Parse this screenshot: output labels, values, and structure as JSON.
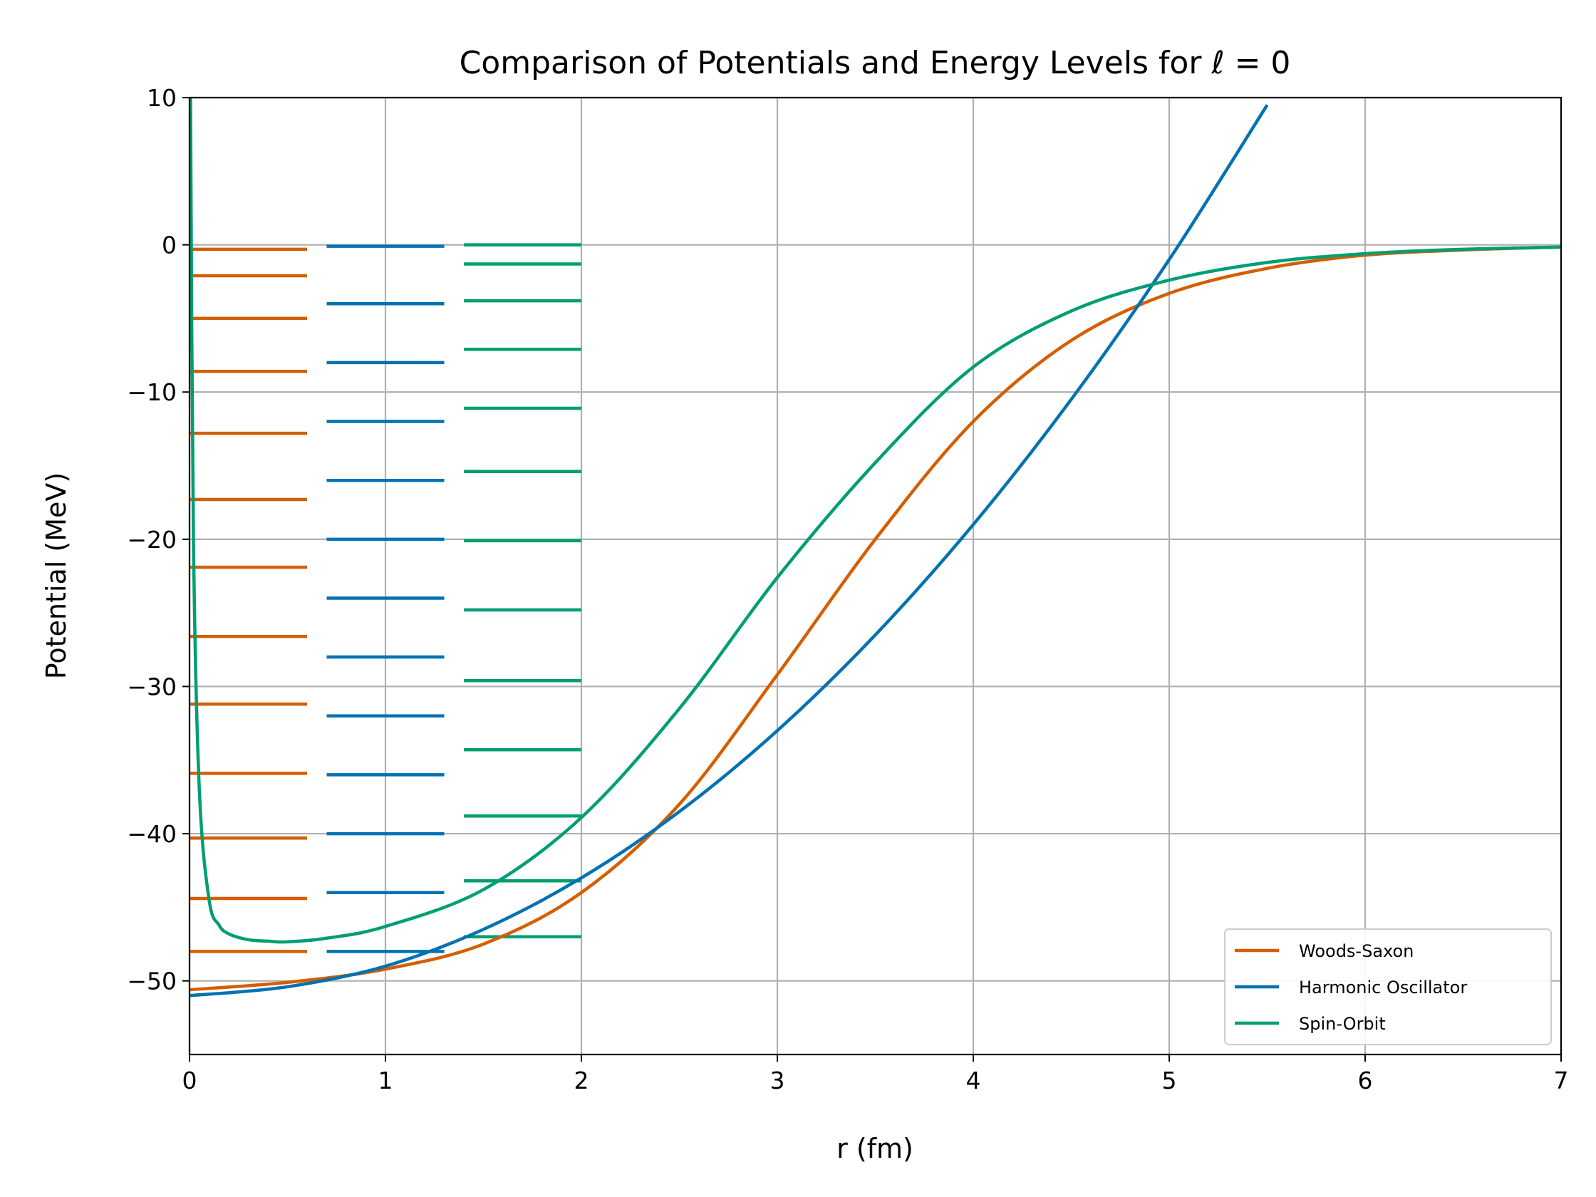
{
  "chart_data": {
    "type": "line",
    "title": "Comparison of Potentials and Energy Levels for ℓ = 0",
    "xlabel": "r (fm)",
    "ylabel": "Potential (MeV)",
    "xlim": [
      0,
      7
    ],
    "ylim": [
      -55,
      10
    ],
    "xticks": [
      "0",
      "1",
      "2",
      "3",
      "4",
      "5",
      "6",
      "7"
    ],
    "yticks": [
      "10",
      "0",
      "−10",
      "−20",
      "−30",
      "−40",
      "−50"
    ],
    "grid": true,
    "legend_position": "lower-right",
    "colors": {
      "woods_saxon": "#d55e00",
      "harmonic_oscillator": "#0072b2",
      "spin_orbit": "#009e73"
    },
    "series": [
      {
        "name": "Woods-Saxon",
        "color": "#d55e00",
        "x": [
          0,
          0.5,
          1.0,
          1.5,
          2.0,
          2.5,
          3.0,
          3.5,
          4.0,
          4.5,
          5.0,
          5.5,
          6.0,
          6.5,
          7.0
        ],
        "y": [
          -50.6,
          -50.1,
          -49.2,
          -47.5,
          -44.0,
          -38.0,
          -29.2,
          -20.0,
          -12.0,
          -6.5,
          -3.3,
          -1.6,
          -0.7,
          -0.35,
          -0.15
        ],
        "levels": {
          "x_range": [
            0,
            0.6
          ],
          "y": [
            -48.0,
            -44.4,
            -40.3,
            -35.9,
            -31.2,
            -26.6,
            -21.9,
            -17.3,
            -12.8,
            -8.6,
            -5.0,
            -2.1,
            -0.3
          ]
        }
      },
      {
        "name": "Harmonic Oscillator",
        "color": "#0072b2",
        "x": [
          0,
          0.5,
          1.0,
          1.5,
          2.0,
          2.5,
          3.0,
          3.5,
          4.0,
          4.5,
          5.0,
          5.5
        ],
        "y": [
          -51.0,
          -50.4,
          -49.0,
          -46.5,
          -43.0,
          -38.5,
          -33.0,
          -26.5,
          -19.0,
          -10.5,
          -1.0,
          9.5
        ],
        "levels": {
          "x_range": [
            0.7,
            1.3
          ],
          "y": [
            -48.0,
            -44.0,
            -40.0,
            -36.0,
            -32.0,
            -28.0,
            -24.0,
            -20.0,
            -16.0,
            -12.0,
            -8.0,
            -4.0,
            -0.1
          ]
        }
      },
      {
        "name": "Spin-Orbit",
        "color": "#009e73",
        "x": [
          0.005,
          0.02,
          0.05,
          0.1,
          0.15,
          0.2,
          0.3,
          0.4,
          0.5,
          0.7,
          1.0,
          1.5,
          2.0,
          2.5,
          3.0,
          3.5,
          4.0,
          4.5,
          5.0,
          5.5,
          6.0,
          6.5,
          7.0
        ],
        "y": [
          10,
          -20,
          -37,
          -44.5,
          -46.2,
          -46.8,
          -47.2,
          -47.3,
          -47.35,
          -47.1,
          -46.3,
          -43.8,
          -38.9,
          -31.5,
          -22.6,
          -14.8,
          -8.3,
          -4.5,
          -2.4,
          -1.2,
          -0.6,
          -0.3,
          -0.15
        ],
        "levels": {
          "x_range": [
            1.4,
            2.0
          ],
          "y": [
            -47.0,
            -43.2,
            -38.8,
            -34.3,
            -29.6,
            -24.8,
            -20.1,
            -15.4,
            -11.1,
            -7.1,
            -3.8,
            -1.3,
            0.0
          ]
        }
      }
    ]
  }
}
